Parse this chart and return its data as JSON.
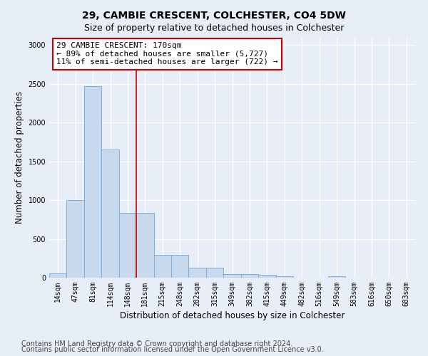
{
  "title1": "29, CAMBIE CRESCENT, COLCHESTER, CO4 5DW",
  "title2": "Size of property relative to detached houses in Colchester",
  "xlabel": "Distribution of detached houses by size in Colchester",
  "ylabel": "Number of detached properties",
  "categories": [
    "14sqm",
    "47sqm",
    "81sqm",
    "114sqm",
    "148sqm",
    "181sqm",
    "215sqm",
    "248sqm",
    "282sqm",
    "315sqm",
    "349sqm",
    "382sqm",
    "415sqm",
    "449sqm",
    "482sqm",
    "516sqm",
    "549sqm",
    "583sqm",
    "616sqm",
    "650sqm",
    "683sqm"
  ],
  "values": [
    55,
    1000,
    2470,
    1650,
    840,
    840,
    290,
    290,
    125,
    125,
    45,
    45,
    35,
    20,
    0,
    0,
    20,
    0,
    0,
    0,
    0
  ],
  "bar_color": "#c8d9ee",
  "bar_edge_color": "#7aafe0",
  "vline_index": 4.5,
  "annotation_text": "29 CAMBIE CRESCENT: 170sqm\n← 89% of detached houses are smaller (5,727)\n11% of semi-detached houses are larger (722) →",
  "annotation_box_color": "#ffffff",
  "annotation_box_edge_color": "#cc0000",
  "vline_color": "#cc0000",
  "ylim": [
    0,
    3100
  ],
  "yticks": [
    0,
    500,
    1000,
    1500,
    2000,
    2500,
    3000
  ],
  "footer1": "Contains HM Land Registry data © Crown copyright and database right 2024.",
  "footer2": "Contains public sector information licensed under the Open Government Licence v3.0.",
  "background_color": "#e8eef8",
  "plot_bg_color": "#e8eef8",
  "title1_fontsize": 10,
  "title2_fontsize": 9,
  "xlabel_fontsize": 8.5,
  "ylabel_fontsize": 8.5,
  "tick_fontsize": 7,
  "annotation_fontsize": 8,
  "footer_fontsize": 7
}
